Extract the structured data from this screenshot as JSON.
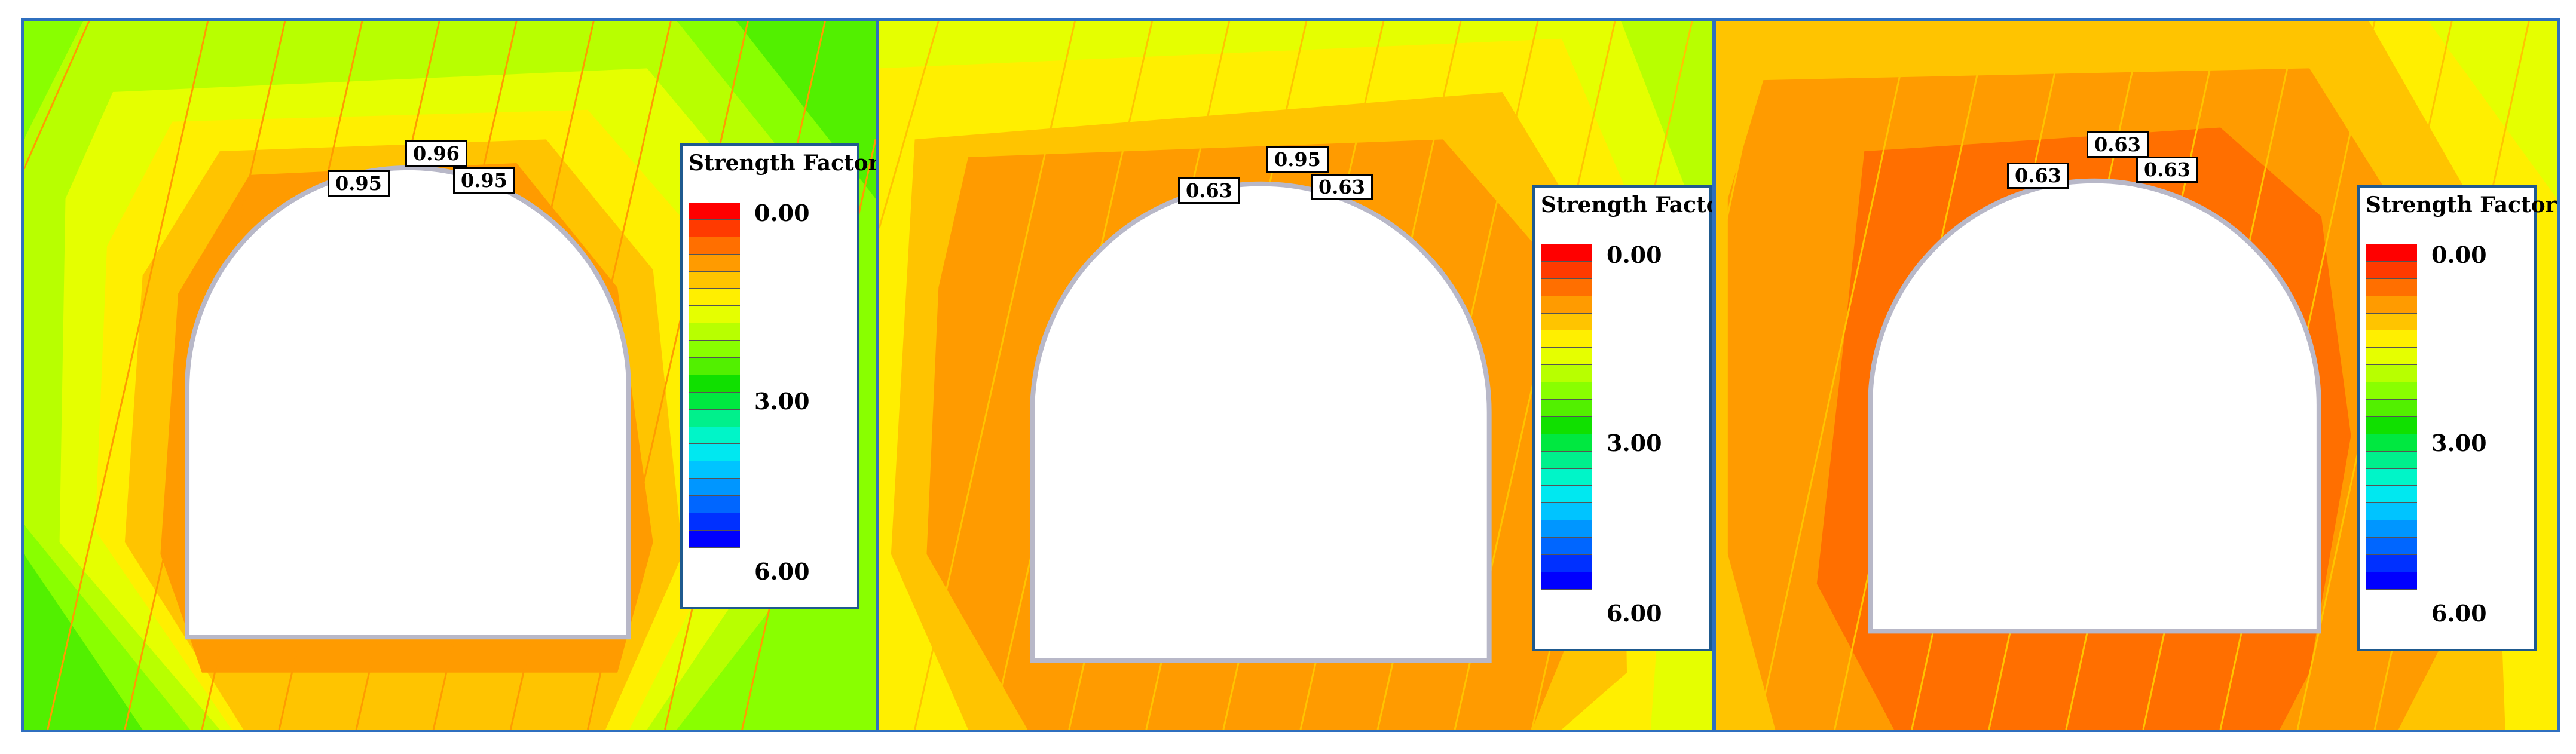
{
  "colors": {
    "scale": [
      "#ff0000",
      "#ff3a00",
      "#ff6f00",
      "#ff9b00",
      "#ffc400",
      "#ffef00",
      "#e5ff00",
      "#b8ff00",
      "#89ff00",
      "#52f000",
      "#10e000",
      "#00e840",
      "#00f08c",
      "#00f5c8",
      "#00e8f0",
      "#00c4ff",
      "#0096ff",
      "#0066ff",
      "#0030ff",
      "#0000ff"
    ],
    "panel_border": "#2f6fbf",
    "opening": "#ffffff"
  },
  "panels": [
    {
      "legend": {
        "title": "Strength Factor",
        "min": "0.00",
        "mid": "3.00",
        "max": "6.00"
      },
      "values": [
        "0.95",
        "0.96",
        "0.95"
      ]
    },
    {
      "legend": {
        "title": "Strength Factor",
        "min": "0.00",
        "mid": "3.00",
        "max": "6.00"
      },
      "values": [
        "0.63",
        "0.95",
        "0.63"
      ]
    },
    {
      "legend": {
        "title": "Strength Factor",
        "min": "0.00",
        "mid": "3.00",
        "max": "6.00"
      },
      "values": [
        "0.63",
        "0.63",
        "0.63"
      ]
    }
  ]
}
